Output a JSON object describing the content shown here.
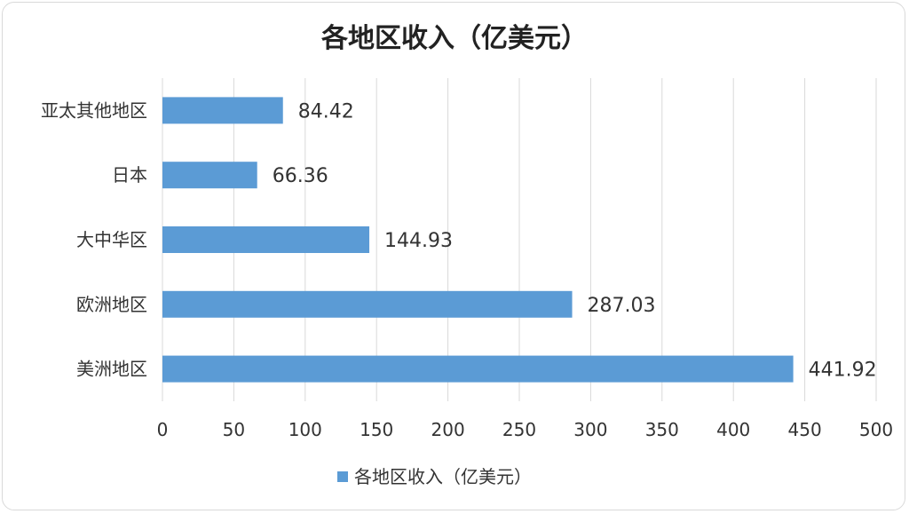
{
  "chart_data": {
    "type": "bar",
    "orientation": "horizontal",
    "title": "各地区收入（亿美元）",
    "categories": [
      "美洲地区",
      "欧洲地区",
      "大中华区",
      "日本",
      "亚太其他地区"
    ],
    "series": [
      {
        "name": "各地区收入（亿美元）",
        "values": [
          441.92,
          287.03,
          144.93,
          66.36,
          84.42
        ],
        "labels": [
          "441.92",
          "287.03",
          "144.93",
          "66.36",
          "84.42"
        ]
      }
    ],
    "xlim": [
      0,
      500
    ],
    "x_ticks": [
      "0",
      "50",
      "100",
      "150",
      "200",
      "250",
      "300",
      "350",
      "400",
      "450",
      "500"
    ],
    "grid": true,
    "legend_position": "bottom",
    "colors": {
      "bar": "#5b9bd5"
    }
  }
}
